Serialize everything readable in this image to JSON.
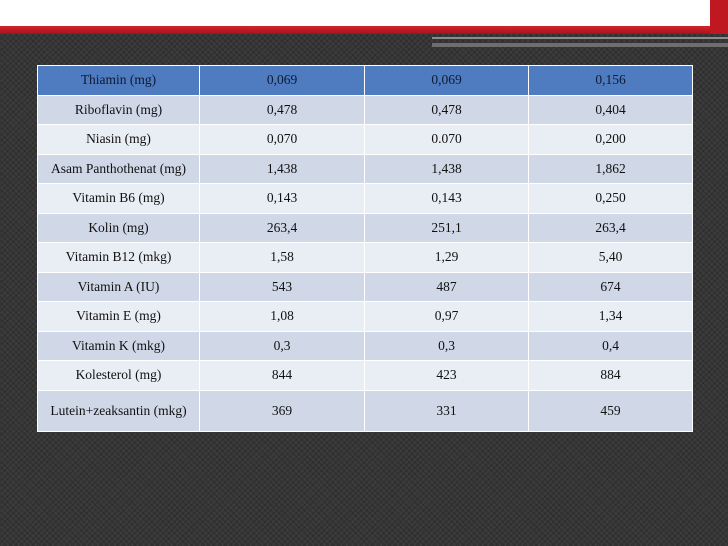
{
  "slide": {
    "colors": {
      "background": "#3b3b3b",
      "accent_red": "#c01820",
      "header_row": "#4f7bc0",
      "row_dark": "#d0d8e8",
      "row_light": "#e9edf4"
    }
  },
  "table": {
    "rows": [
      {
        "name": "Thiamin (mg)",
        "v1": "0,069",
        "v2": "0,069",
        "v3": "0,156"
      },
      {
        "name": "Riboflavin (mg)",
        "v1": "0,478",
        "v2": "0,478",
        "v3": "0,404"
      },
      {
        "name": "Niasin (mg)",
        "v1": "0,070",
        "v2": "0.070",
        "v3": "0,200"
      },
      {
        "name": "Asam Panthothenat (mg)",
        "v1": "1,438",
        "v2": "1,438",
        "v3": "1,862"
      },
      {
        "name": "Vitamin B6 (mg)",
        "v1": "0,143",
        "v2": "0,143",
        "v3": "0,250"
      },
      {
        "name": "Kolin (mg)",
        "v1": "263,4",
        "v2": "251,1",
        "v3": "263,4"
      },
      {
        "name": "Vitamin B12 (mkg)",
        "v1": "1,58",
        "v2": "1,29",
        "v3": "5,40"
      },
      {
        "name": "Vitamin A (IU)",
        "v1": "543",
        "v2": "487",
        "v3": "674"
      },
      {
        "name": "Vitamin E (mg)",
        "v1": "1,08",
        "v2": "0,97",
        "v3": "1,34"
      },
      {
        "name": "Vitamin K (mkg)",
        "v1": "0,3",
        "v2": "0,3",
        "v3": "0,4"
      },
      {
        "name": "Kolesterol (mg)",
        "v1": "844",
        "v2": "423",
        "v3": "884"
      },
      {
        "name": "Lutein+zeaksantin (mkg)",
        "v1": "369",
        "v2": "331",
        "v3": "459"
      }
    ]
  }
}
